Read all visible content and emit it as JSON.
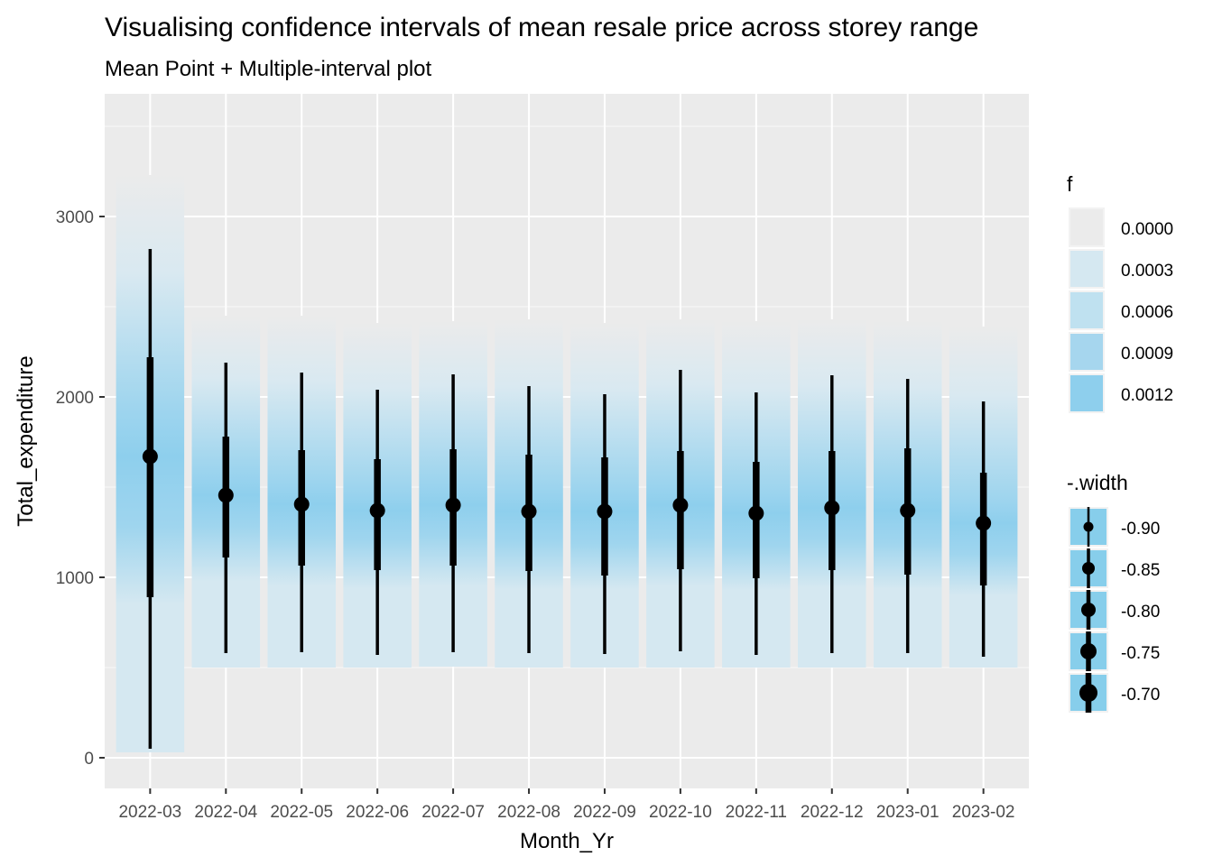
{
  "chart_data": {
    "type": "interval",
    "title": "Visualising confidence intervals of mean resale price across storey range",
    "subtitle": "Mean Point + Multiple-interval plot",
    "xlabel": "Month_Yr",
    "ylabel": "Total_expenditure",
    "ylim": [
      -170,
      3680
    ],
    "yticks": [
      0,
      1000,
      2000,
      3000
    ],
    "grid": true,
    "categories": [
      "2022-03",
      "2022-04",
      "2022-05",
      "2022-06",
      "2022-07",
      "2022-08",
      "2022-09",
      "2022-10",
      "2022-11",
      "2022-12",
      "2023-01",
      "2023-02"
    ],
    "mean": [
      1670,
      1455,
      1405,
      1370,
      1400,
      1365,
      1365,
      1400,
      1355,
      1385,
      1370,
      1300
    ],
    "thick_interval": [
      [
        890,
        2220
      ],
      [
        1110,
        1780
      ],
      [
        1065,
        1705
      ],
      [
        1040,
        1655
      ],
      [
        1065,
        1710
      ],
      [
        1035,
        1680
      ],
      [
        1010,
        1665
      ],
      [
        1045,
        1700
      ],
      [
        995,
        1640
      ],
      [
        1040,
        1700
      ],
      [
        1015,
        1715
      ],
      [
        955,
        1580
      ]
    ],
    "thin_interval": [
      [
        50,
        2820
      ],
      [
        580,
        2190
      ],
      [
        585,
        2135
      ],
      [
        570,
        2040
      ],
      [
        585,
        2125
      ],
      [
        580,
        2060
      ],
      [
        575,
        2015
      ],
      [
        590,
        2150
      ],
      [
        570,
        2025
      ],
      [
        580,
        2120
      ],
      [
        580,
        2100
      ],
      [
        560,
        1975
      ]
    ],
    "gradient_range": [
      [
        30,
        3230
      ],
      [
        500,
        2450
      ],
      [
        500,
        2450
      ],
      [
        500,
        2410
      ],
      [
        505,
        2420
      ],
      [
        500,
        2430
      ],
      [
        500,
        2410
      ],
      [
        500,
        2430
      ],
      [
        500,
        2420
      ],
      [
        500,
        2430
      ],
      [
        500,
        2420
      ],
      [
        500,
        2390
      ]
    ],
    "legend_fill": {
      "title": "f",
      "labels": [
        "0.0000",
        "0.0003",
        "0.0006",
        "0.0009",
        "0.0012"
      ],
      "colors": [
        "#ebebeb",
        "#d5e8f1",
        "#bfe1f0",
        "#a6d6ee",
        "#8ecfed"
      ]
    },
    "legend_width": {
      "title": "-.width",
      "labels": [
        "-0.90",
        "-0.85",
        "-0.80",
        "-0.75",
        "-0.70"
      ]
    },
    "colors": {
      "panel": "#ebebeb",
      "grid": "#ffffff",
      "fill": "#87ceeb",
      "interval": "#000000"
    }
  }
}
